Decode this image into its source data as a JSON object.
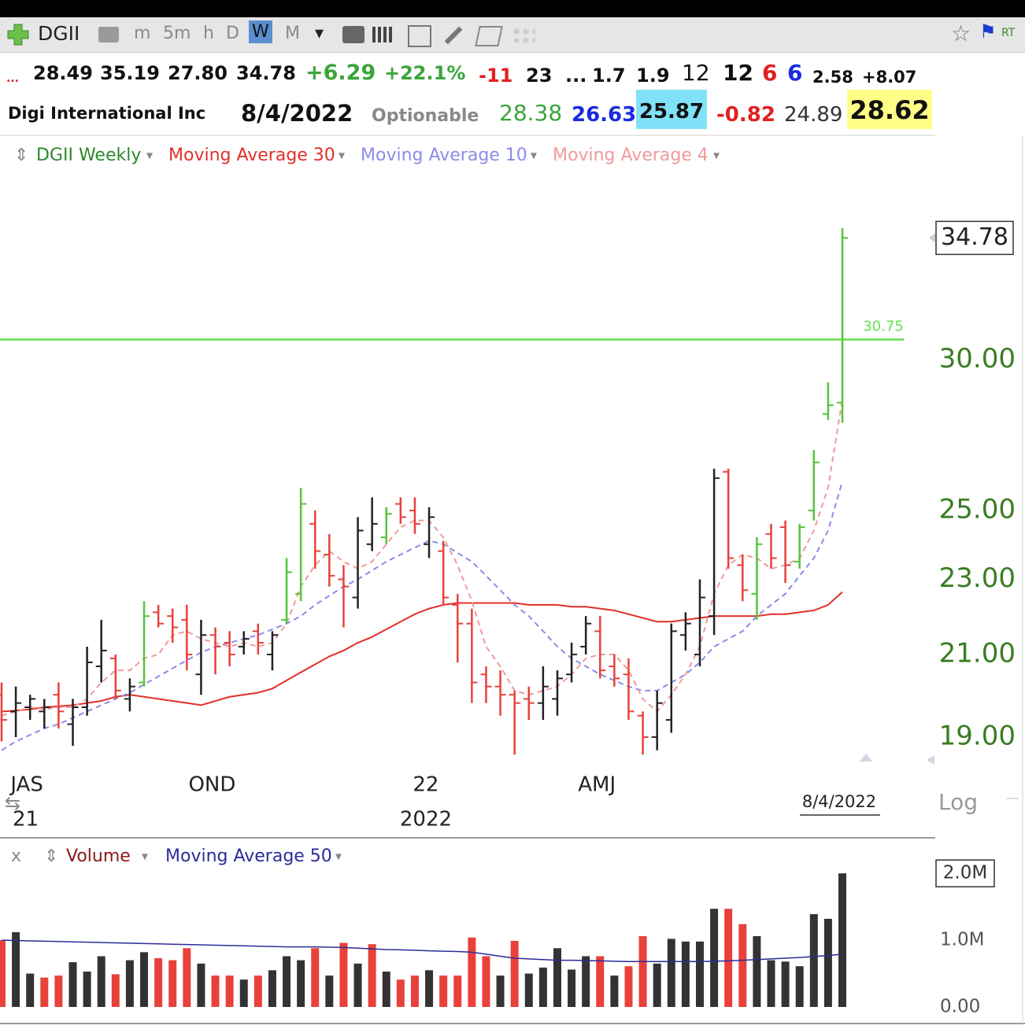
{
  "toolbar": {
    "symbol": "DGII",
    "intervals": [
      "m",
      "5m",
      "h",
      "D",
      "W",
      "M"
    ],
    "realtime": "RT"
  },
  "quote": {
    "row1": [
      "...",
      "28.49",
      "35.19",
      "27.80",
      "34.78",
      "+6.29",
      "+22.1%",
      "-11",
      "23",
      "...",
      "1.7",
      "1.9",
      "12",
      "12",
      "6",
      "6",
      "2.58",
      "+8.07"
    ],
    "row2": [
      "Digi International Inc",
      "8/4/2022",
      "Optionable",
      "28.38",
      "26.63",
      "25.87",
      "-0.82",
      "24.89",
      "28.62"
    ]
  },
  "chart_data": [
    {
      "type": "ohlc",
      "name": "DGII Weekly",
      "color": "#2a8a2a",
      "scale": "log",
      "scale_label": "Log",
      "date_marker": "8/4/2022",
      "categories": [
        null,
        "JAS",
        null,
        null,
        null,
        null,
        null,
        null,
        null,
        null,
        null,
        null,
        null,
        null,
        "OND",
        null,
        null,
        null,
        null,
        null,
        null,
        null,
        null,
        null,
        null,
        null,
        null,
        null,
        null,
        "22",
        null,
        null,
        null,
        null,
        null,
        null,
        null,
        null,
        null,
        null,
        null,
        "AMJ",
        null,
        null,
        null,
        null,
        null,
        null,
        null,
        null,
        null,
        null,
        null,
        null,
        null,
        null,
        null,
        null,
        null,
        null
      ],
      "year_labels": [
        "21",
        null,
        null,
        null,
        null,
        null,
        null,
        null,
        null,
        null,
        null,
        null,
        null,
        null,
        null,
        null,
        null,
        null,
        null,
        null,
        null,
        null,
        null,
        null,
        null,
        null,
        null,
        null,
        null,
        "2022",
        null,
        null,
        null,
        null,
        null,
        null,
        null,
        null,
        null,
        null,
        null,
        null,
        null,
        null,
        null,
        null,
        null,
        null,
        null,
        null,
        null,
        null,
        null,
        null,
        null,
        null,
        null,
        null,
        null,
        null
      ],
      "open": [
        20,
        19.6,
        19.7,
        19.6,
        20,
        19.3,
        19.7,
        20.7,
        20.9,
        19.9,
        20.3,
        22.1,
        22,
        21.9,
        20.5,
        21.5,
        21.3,
        21.2,
        21.6,
        21,
        21.9,
        22.6,
        24.6,
        23.7,
        23,
        22.5,
        24,
        24.2,
        25.2,
        25,
        24,
        23.8,
        22.3,
        21.8,
        20.5,
        20.2,
        20,
        19.9,
        19.8,
        19.9,
        20.5,
        21.2,
        21.6,
        20.7,
        20.5,
        19.5,
        19,
        19.4,
        21.5,
        21,
        22,
        26.2,
        23.4,
        22.6,
        24.3,
        24.5,
        23.5,
        25,
        28.1,
        28.49
      ],
      "high": [
        20.3,
        20.2,
        20,
        19.9,
        20.3,
        19.9,
        21.2,
        21.9,
        21,
        20.4,
        22.4,
        22.3,
        22.2,
        22.3,
        21.9,
        21.7,
        21.6,
        21.6,
        21.8,
        21.6,
        23.6,
        25.7,
        25,
        24.3,
        23.4,
        24.8,
        25.4,
        25.1,
        25.4,
        25.4,
        25.1,
        24.1,
        22.6,
        22.2,
        20.7,
        20.6,
        20.1,
        20.2,
        20.7,
        20.6,
        21.3,
        22,
        22,
        21,
        20.9,
        19.6,
        20.1,
        21.8,
        22.1,
        23,
        26.3,
        26.3,
        23.7,
        24.2,
        24.6,
        24.7,
        24.6,
        26.9,
        29.2,
        35.19
      ],
      "low": [
        18.9,
        19,
        19.4,
        19.2,
        19.2,
        18.8,
        19.5,
        20.3,
        19.9,
        19.6,
        20.2,
        21.7,
        21.3,
        20.6,
        20,
        20.5,
        20.7,
        21,
        21,
        20.6,
        21.8,
        22.4,
        23.3,
        22.8,
        21.7,
        22.2,
        23.8,
        24,
        24.6,
        24.3,
        23.6,
        22.3,
        20.8,
        19.8,
        19.8,
        19.5,
        18.6,
        19.4,
        19.4,
        19.5,
        20.3,
        21,
        20.4,
        20.2,
        19.4,
        18.6,
        18.7,
        19.1,
        21.1,
        20.7,
        21.5,
        23.3,
        22.4,
        21.9,
        23.3,
        22.9,
        23.3,
        24.7,
        27.9,
        27.8
      ],
      "close": [
        19.4,
        19.8,
        19.9,
        19.7,
        19.6,
        19.7,
        20.8,
        21.1,
        20.1,
        20.2,
        22,
        21.8,
        21.7,
        21,
        21.5,
        21.2,
        21,
        21.4,
        21.3,
        21.5,
        23.2,
        25.2,
        23.8,
        23.1,
        22.8,
        24.4,
        24.6,
        24.9,
        24.8,
        24.6,
        24.8,
        22.5,
        21.8,
        20.3,
        20.2,
        20,
        19.8,
        19.8,
        20.2,
        20.4,
        21,
        21.8,
        20.6,
        20.4,
        19.6,
        19,
        19.8,
        21.6,
        21.8,
        22.5,
        26,
        23.6,
        22.7,
        24,
        23.6,
        23.4,
        24.5,
        26.5,
        28.4,
        34.78
      ],
      "colors": [
        "#e8413c",
        "#222222",
        "#222222",
        "#222222",
        "#e8413c",
        "#222222",
        "#222222",
        "#222222",
        "#e8413c",
        "#222222",
        "#55c43c",
        "#e8413c",
        "#e8413c",
        "#e8413c",
        "#222222",
        "#e8413c",
        "#e8413c",
        "#222222",
        "#e8413c",
        "#222222",
        "#55c43c",
        "#55c43c",
        "#e8413c",
        "#e8413c",
        "#e8413c",
        "#222222",
        "#222222",
        "#55c43c",
        "#e8413c",
        "#e8413c",
        "#222222",
        "#e8413c",
        "#e8413c",
        "#e8413c",
        "#e8413c",
        "#e8413c",
        "#e8413c",
        "#e8413c",
        "#222222",
        "#222222",
        "#222222",
        "#222222",
        "#e8413c",
        "#e8413c",
        "#e8413c",
        "#e8413c",
        "#222222",
        "#222222",
        "#222222",
        "#222222",
        "#222222",
        "#e8413c",
        "#e8413c",
        "#55c43c",
        "#e8413c",
        "#e8413c",
        "#55c43c",
        "#55c43c",
        "#55c43c",
        "#55c43c"
      ],
      "series": [
        {
          "name": "Moving Average 30",
          "color": "#e0302a",
          "dashed": false,
          "values": [
            19.6,
            19.62,
            19.65,
            19.7,
            19.72,
            19.75,
            19.8,
            19.85,
            19.95,
            20,
            19.95,
            19.9,
            19.85,
            19.8,
            19.75,
            19.85,
            19.95,
            20,
            20.05,
            20.15,
            20.35,
            20.55,
            20.75,
            20.95,
            21.1,
            21.3,
            21.45,
            21.65,
            21.85,
            22.05,
            22.2,
            22.3,
            22.35,
            22.35,
            22.35,
            22.35,
            22.35,
            22.3,
            22.3,
            22.3,
            22.25,
            22.25,
            22.2,
            22.15,
            22.05,
            21.95,
            21.85,
            21.85,
            21.9,
            21.95,
            22,
            22,
            22,
            22,
            22.05,
            22.05,
            22.1,
            22.15,
            22.3,
            22.65
          ]
        },
        {
          "name": "Moving Average 10",
          "color": "#8b8be8",
          "dashed": true,
          "values": [
            18.7,
            18.9,
            19.05,
            19.2,
            19.3,
            19.45,
            19.6,
            19.75,
            19.9,
            20.05,
            20.25,
            20.45,
            20.65,
            20.85,
            21.05,
            21.2,
            21.3,
            21.4,
            21.5,
            21.65,
            21.8,
            22,
            22.3,
            22.55,
            22.8,
            23,
            23.25,
            23.5,
            23.7,
            23.9,
            24.1,
            24,
            23.75,
            23.5,
            23.1,
            22.7,
            22.3,
            22,
            21.6,
            21.2,
            20.9,
            20.7,
            20.5,
            20.35,
            20.2,
            20.1,
            20.1,
            20.3,
            20.5,
            20.8,
            21.2,
            21.4,
            21.6,
            22,
            22.3,
            22.6,
            23.1,
            23.6,
            24.4,
            25.9
          ]
        },
        {
          "name": "Moving Average 4",
          "color": "#f09a9a",
          "dashed": true,
          "values": [
            19.5,
            19.6,
            19.7,
            19.65,
            19.7,
            19.7,
            19.9,
            20.3,
            20.6,
            20.6,
            20.9,
            21,
            21.5,
            21.6,
            21.4,
            21.3,
            21.2,
            21.3,
            21.2,
            21.3,
            21.8,
            22.8,
            23.4,
            23.8,
            23.5,
            23.3,
            23.5,
            24,
            24.5,
            24.7,
            24.7,
            24.2,
            23.4,
            22.4,
            21.2,
            20.7,
            20.1,
            20,
            20.1,
            20.2,
            20.5,
            20.9,
            21,
            21,
            20.6,
            19.9,
            19.6,
            20,
            20.5,
            21.2,
            22.6,
            23.4,
            23.7,
            23.6,
            23.3,
            23.4,
            23.6,
            24.4,
            25.7,
            28.6
          ]
        }
      ],
      "hline": {
        "value": 30.75,
        "color": "#66e050"
      },
      "ylim": [
        18.15,
        37.8
      ],
      "yticks": [
        {
          "value": 19,
          "label": "19.00"
        },
        {
          "value": 21,
          "label": "21.00"
        },
        {
          "value": 23,
          "label": "23.00"
        },
        {
          "value": 25,
          "label": "25.00"
        },
        {
          "value": 30,
          "label": "30.00"
        }
      ]
    },
    {
      "type": "bar",
      "name": "Volume",
      "close_button": "x",
      "color": "#8b1a1a",
      "values": [
        1000000,
        1120000,
        500000,
        440000,
        470000,
        670000,
        530000,
        760000,
        490000,
        700000,
        820000,
        730000,
        700000,
        880000,
        650000,
        470000,
        470000,
        410000,
        470000,
        550000,
        760000,
        700000,
        880000,
        470000,
        960000,
        650000,
        940000,
        530000,
        410000,
        470000,
        550000,
        470000,
        470000,
        1040000,
        760000,
        470000,
        990000,
        500000,
        590000,
        880000,
        560000,
        760000,
        760000,
        470000,
        610000,
        1060000,
        650000,
        1020000,
        980000,
        980000,
        1470000,
        1470000,
        1240000,
        1060000,
        700000,
        680000,
        610000,
        1390000,
        1320000,
        2000000
      ],
      "value_labels": [
        null,
        null,
        null,
        null,
        null,
        null,
        null,
        null,
        null,
        null,
        null,
        null,
        null,
        null,
        null,
        null,
        null,
        null,
        null,
        null,
        null,
        null,
        null,
        null,
        null,
        null,
        null,
        null,
        null,
        null,
        null,
        null,
        null,
        null,
        null,
        null,
        null,
        null,
        null,
        null,
        null,
        null,
        null,
        null,
        null,
        null,
        null,
        null,
        null,
        null,
        null,
        null,
        null,
        null,
        null,
        null,
        null,
        null,
        null,
        "2.0M"
      ],
      "colors": [
        "#e8413c",
        "#333333",
        "#333333",
        "#e8413c",
        "#e8413c",
        "#333333",
        "#333333",
        "#333333",
        "#e8413c",
        "#333333",
        "#333333",
        "#e8413c",
        "#e8413c",
        "#e8413c",
        "#333333",
        "#e8413c",
        "#e8413c",
        "#333333",
        "#e8413c",
        "#333333",
        "#333333",
        "#333333",
        "#e8413c",
        "#333333",
        "#e8413c",
        "#333333",
        "#e8413c",
        "#333333",
        "#e8413c",
        "#e8413c",
        "#333333",
        "#e8413c",
        "#e8413c",
        "#e8413c",
        "#e8413c",
        "#333333",
        "#e8413c",
        "#333333",
        "#333333",
        "#333333",
        "#333333",
        "#333333",
        "#e8413c",
        "#333333",
        "#e8413c",
        "#e8413c",
        "#333333",
        "#333333",
        "#333333",
        "#333333",
        "#333333",
        "#e8413c",
        "#e8413c",
        "#333333",
        "#333333",
        "#333333",
        "#333333",
        "#333333",
        "#333333",
        "#333333"
      ],
      "series": [
        {
          "name": "Moving Average 50",
          "color": "#2b2b9a",
          "values": [
            1000000,
            995000,
            990000,
            985000,
            980000,
            975000,
            970000,
            965000,
            960000,
            955000,
            950000,
            945000,
            940000,
            935000,
            930000,
            925000,
            920000,
            915000,
            910000,
            905000,
            900000,
            900000,
            900000,
            895000,
            890000,
            880000,
            870000,
            860000,
            855000,
            850000,
            840000,
            835000,
            830000,
            820000,
            790000,
            760000,
            730000,
            720000,
            710000,
            700000,
            700000,
            695000,
            690000,
            685000,
            680000,
            680000,
            680000,
            680000,
            680000,
            680000,
            685000,
            690000,
            700000,
            710000,
            720000,
            730000,
            740000,
            755000,
            770000,
            790000
          ]
        }
      ],
      "ylim": [
        0,
        2120000
      ],
      "yticks": [
        {
          "value": 0,
          "label": "0.00"
        },
        {
          "value": 1000000,
          "label": "1.0M"
        }
      ]
    }
  ]
}
